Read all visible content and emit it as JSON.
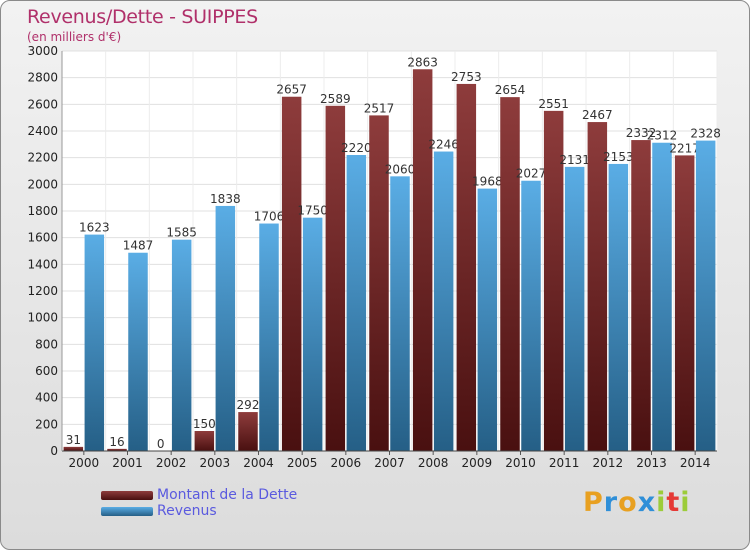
{
  "title": "Revenus/Dette - SUIPPES",
  "subtitle": "(en milliers d'€)",
  "logo": {
    "text": "Proxiti",
    "colors": [
      "#e8a020",
      "#2f8fd8",
      "#e8a020",
      "#2f8fd8",
      "#9ccc3a",
      "#e53935",
      "#9ccc3a"
    ]
  },
  "chart_data": {
    "type": "bar",
    "title": "Revenus/Dette - SUIPPES",
    "subtitle": "(en milliers d'€)",
    "categories": [
      "2000",
      "2001",
      "2002",
      "2003",
      "2004",
      "2005",
      "2006",
      "2007",
      "2008",
      "2009",
      "2010",
      "2011",
      "2012",
      "2013",
      "2014"
    ],
    "series": [
      {
        "name": "Montant de la Dette",
        "color": "#7a1a1a",
        "values": [
          31,
          16,
          0,
          150,
          292,
          2657,
          2589,
          2517,
          2863,
          2753,
          2654,
          2551,
          2467,
          2332,
          2217
        ],
        "labels": [
          "31",
          "16",
          "0",
          "150",
          "292",
          "2657",
          "2589",
          "2517",
          "2863",
          "2753",
          "2654",
          "2551",
          "2467",
          "2332",
          "2217"
        ]
      },
      {
        "name": "Revenus",
        "color": "#3d9ee0",
        "values": [
          1623,
          1487,
          1585,
          1838,
          1706,
          1750,
          2220,
          2060,
          2246,
          1968,
          2027,
          2131,
          2153,
          2312,
          2328
        ],
        "labels": [
          "1623",
          "1487",
          "1585",
          "1838",
          "1706",
          "1750",
          "2220",
          "2060",
          "2246",
          "1968",
          "2027",
          "2131",
          "2153",
          "2312",
          "2328"
        ]
      }
    ],
    "ylim": [
      0,
      3000
    ],
    "yticks": [
      "0",
      "200",
      "400",
      "600",
      "800",
      "1000",
      "1200",
      "1400",
      "1600",
      "1800",
      "2000",
      "2200",
      "2400",
      "2600",
      "2800",
      "3000"
    ],
    "grid": true,
    "legend": "bottom-left"
  }
}
